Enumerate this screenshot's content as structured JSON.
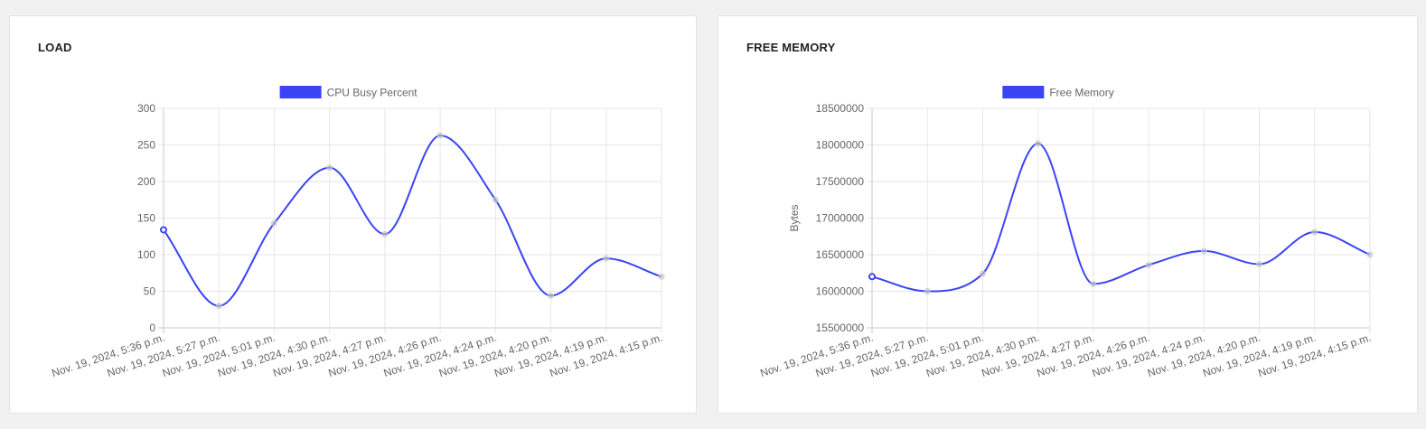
{
  "panels": [
    {
      "title": "LOAD",
      "chart_data": {
        "type": "line",
        "title": "",
        "xlabel": "",
        "ylabel": "",
        "categories": [
          "Nov. 19, 2024, 5:36 p.m.",
          "Nov. 19, 2024, 5:27 p.m.",
          "Nov. 19, 2024, 5:01 p.m.",
          "Nov. 19, 2024, 4:30 p.m.",
          "Nov. 19, 2024, 4:27 p.m.",
          "Nov. 19, 2024, 4:26 p.m.",
          "Nov. 19, 2024, 4:24 p.m.",
          "Nov. 19, 2024, 4:20 p.m.",
          "Nov. 19, 2024, 4:19 p.m.",
          "Nov. 19, 2024, 4:15 p.m."
        ],
        "series": [
          {
            "name": "CPU Busy Percent",
            "color": "#3a44f5",
            "values": [
              134,
              30,
              143,
              219,
              128,
              263,
              175,
              44,
              95,
              70
            ]
          }
        ],
        "ylim": [
          0,
          300
        ],
        "yticks": [
          "0",
          "50",
          "100",
          "150",
          "200",
          "250",
          "300"
        ],
        "grid": true,
        "legend": "top-center"
      }
    },
    {
      "title": "FREE MEMORY",
      "chart_data": {
        "type": "line",
        "title": "",
        "xlabel": "",
        "ylabel": "Bytes",
        "categories": [
          "Nov. 19, 2024, 5:36 p.m.",
          "Nov. 19, 2024, 5:27 p.m.",
          "Nov. 19, 2024, 5:01 p.m.",
          "Nov. 19, 2024, 4:30 p.m.",
          "Nov. 19, 2024, 4:27 p.m.",
          "Nov. 19, 2024, 4:26 p.m.",
          "Nov. 19, 2024, 4:24 p.m.",
          "Nov. 19, 2024, 4:20 p.m.",
          "Nov. 19, 2024, 4:19 p.m.",
          "Nov. 19, 2024, 4:15 p.m."
        ],
        "series": [
          {
            "name": "Free Memory",
            "color": "#3a44f5",
            "values": [
              16200000,
              16000000,
              16240000,
              18020000,
              16100000,
              16360000,
              16550000,
              16370000,
              16810000,
              16500000
            ]
          }
        ],
        "ylim": [
          15500000,
          18500000
        ],
        "yticks": [
          "15500000",
          "16000000",
          "16500000",
          "17000000",
          "17500000",
          "18000000",
          "18500000"
        ],
        "grid": true,
        "legend": "top-center"
      }
    }
  ]
}
